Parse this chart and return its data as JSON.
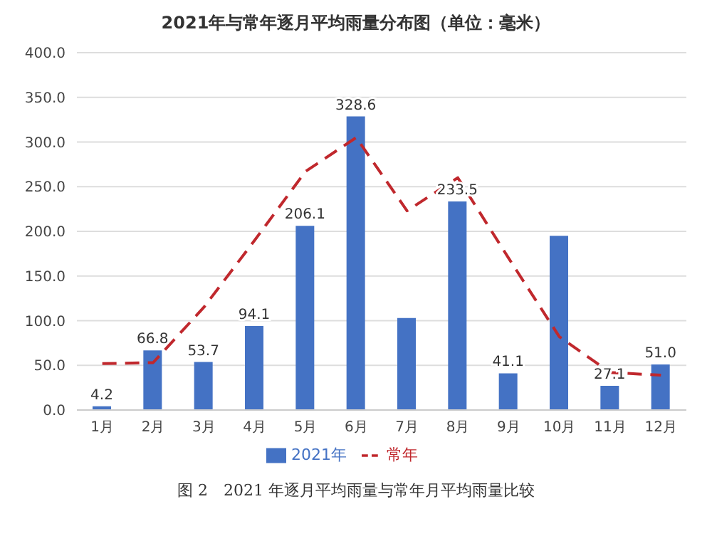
{
  "chart_data": {
    "type": "bar",
    "title": "2021年与常年逐月平均雨量分布图（单位：毫米）",
    "categories": [
      "1月",
      "2月",
      "3月",
      "4月",
      "5月",
      "6月",
      "7月",
      "8月",
      "9月",
      "10月",
      "11月",
      "12月"
    ],
    "series": [
      {
        "name": "2021年",
        "color": "#4472c4",
        "values": [
          4.2,
          66.8,
          53.7,
          94.1,
          206.1,
          328.6,
          103,
          233.5,
          41.1,
          195,
          27.1,
          51.0
        ],
        "value_labels": [
          "4.2",
          "66.8",
          "53.7",
          "94.1",
          "206.1",
          "328.6",
          null,
          "233.5",
          "41.1",
          null,
          "27.1",
          "51.0"
        ]
      },
      {
        "name": "常年",
        "type": "line",
        "color": "#c0282d",
        "line_style": "dashed",
        "marker": "none",
        "values": [
          52,
          53,
          115,
          190,
          267,
          305,
          223,
          260,
          170,
          82,
          42,
          39
        ]
      }
    ],
    "ylim": [
      0,
      400
    ],
    "yticks": [
      {
        "value": 0,
        "label": "0.0"
      },
      {
        "value": 50,
        "label": "50.0"
      },
      {
        "value": 100,
        "label": "100.0"
      },
      {
        "value": 150,
        "label": "150.0"
      },
      {
        "value": 200,
        "label": "200.0"
      },
      {
        "value": 250,
        "label": "250.0"
      },
      {
        "value": 300,
        "label": "300.0"
      },
      {
        "value": 350,
        "label": "350.0"
      },
      {
        "value": 400,
        "label": "400.0"
      }
    ],
    "grid": "y",
    "legend": "bottom",
    "annotations": [
      "图 2　2021 年逐月平均雨量与常年月平均雨量比较"
    ]
  }
}
